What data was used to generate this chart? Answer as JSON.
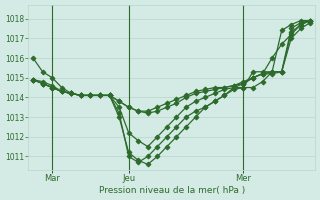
{
  "bg_color": "#d4eae4",
  "grid_color": "#b8d4ce",
  "line_color": "#2d6b2d",
  "marker": "D",
  "markersize": 2.5,
  "linewidth": 0.9,
  "ylim": [
    1010.3,
    1018.7
  ],
  "yticks": [
    1011,
    1012,
    1013,
    1014,
    1015,
    1016,
    1017,
    1018
  ],
  "xlabel": "Pression niveau de la mer( hPa )",
  "xtick_labels": [
    "Mar",
    "Jeu",
    "Mer"
  ],
  "xtick_positions": [
    2,
    10,
    22
  ],
  "vline_positions": [
    2,
    10,
    22
  ],
  "series": [
    {
      "x": [
        0,
        1,
        2,
        3,
        4,
        5,
        6,
        7,
        8,
        9,
        10,
        11,
        12,
        13,
        14,
        15,
        16,
        17,
        18,
        19,
        20,
        21,
        22,
        23,
        24,
        25,
        26,
        27,
        28,
        29
      ],
      "y": [
        1016.0,
        1015.3,
        1015.0,
        1014.5,
        1014.2,
        1014.1,
        1014.1,
        1014.1,
        1014.1,
        1013.2,
        1011.0,
        1010.7,
        1011.0,
        1011.5,
        1012.0,
        1012.5,
        1013.0,
        1013.3,
        1013.5,
        1013.8,
        1014.1,
        1014.5,
        1014.7,
        1015.0,
        1015.2,
        1016.0,
        1016.7,
        1017.2,
        1017.7,
        1017.9
      ]
    },
    {
      "x": [
        0,
        1,
        2,
        3,
        4,
        5,
        6,
        7,
        8,
        9,
        10,
        11,
        12,
        13,
        14,
        15,
        16,
        17,
        18,
        19,
        20,
        21,
        22,
        23,
        24,
        25,
        26,
        27,
        28,
        29
      ],
      "y": [
        1014.9,
        1014.8,
        1014.6,
        1014.3,
        1014.2,
        1014.1,
        1014.1,
        1014.1,
        1014.1,
        1013.8,
        1013.5,
        1013.3,
        1013.2,
        1013.3,
        1013.5,
        1013.7,
        1014.0,
        1014.2,
        1014.3,
        1014.4,
        1014.5,
        1014.6,
        1014.8,
        1015.0,
        1015.2,
        1015.2,
        1015.3,
        1017.0,
        1017.5,
        1017.8
      ]
    },
    {
      "x": [
        0,
        1,
        2,
        3,
        4,
        5,
        6,
        7,
        8,
        9,
        10,
        11,
        12,
        13,
        14,
        15,
        16,
        17,
        18,
        19,
        20,
        21,
        22,
        23,
        24,
        25,
        26,
        27,
        28,
        29
      ],
      "y": [
        1014.9,
        1014.7,
        1014.5,
        1014.3,
        1014.2,
        1014.1,
        1014.1,
        1014.1,
        1014.1,
        1013.5,
        1012.2,
        1011.8,
        1011.5,
        1012.0,
        1012.5,
        1013.0,
        1013.5,
        1013.8,
        1014.0,
        1014.2,
        1014.4,
        1014.5,
        1014.5,
        1015.3,
        1015.3,
        1015.3,
        1015.3,
        1017.3,
        1017.7,
        1017.9
      ]
    },
    {
      "x": [
        0,
        1,
        2,
        3,
        4,
        5,
        6,
        7,
        8,
        9,
        10,
        11,
        12,
        13,
        14,
        15,
        16,
        17,
        18,
        19,
        20,
        21,
        22,
        23,
        24,
        25,
        26,
        27,
        28,
        29
      ],
      "y": [
        1014.9,
        1014.7,
        1014.5,
        1014.3,
        1014.2,
        1014.1,
        1014.1,
        1014.1,
        1014.1,
        1013.0,
        1011.2,
        1010.8,
        1010.6,
        1011.0,
        1011.5,
        1012.0,
        1012.5,
        1013.0,
        1013.5,
        1013.8,
        1014.1,
        1014.4,
        1014.5,
        1014.5,
        1014.8,
        1015.3,
        1015.3,
        1017.5,
        1017.8,
        1017.9
      ]
    },
    {
      "x": [
        0,
        1,
        2,
        3,
        4,
        5,
        6,
        7,
        8,
        9,
        10,
        11,
        12,
        13,
        14,
        15,
        16,
        17,
        18,
        19,
        20,
        21,
        22,
        23,
        24,
        25,
        26,
        27,
        28,
        29
      ],
      "y": [
        1014.9,
        1014.7,
        1014.5,
        1014.3,
        1014.2,
        1014.1,
        1014.1,
        1014.1,
        1014.1,
        1013.8,
        1013.5,
        1013.3,
        1013.3,
        1013.5,
        1013.7,
        1013.9,
        1014.1,
        1014.3,
        1014.4,
        1014.5,
        1014.5,
        1014.6,
        1014.7,
        1015.0,
        1015.2,
        1015.3,
        1017.4,
        1017.7,
        1017.9,
        1017.9
      ]
    }
  ],
  "xlim": [
    -0.5,
    29.5
  ]
}
